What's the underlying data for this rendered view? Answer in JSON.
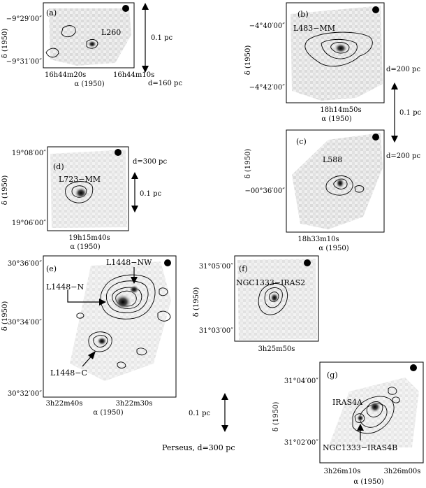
{
  "panels": [
    {
      "id": "a",
      "letter": "(a)",
      "source": "L260",
      "yticks": [
        "−9°29′00″",
        "−9°31′00″"
      ],
      "xticks": [
        "16h44m20s",
        "16h44m10s"
      ],
      "ylabel": "δ (1950)",
      "xlabel": "α (1950)"
    },
    {
      "id": "b",
      "letter": "(b)",
      "source": "L483−MM",
      "yticks": [
        "−4°40′00″",
        "−4°42′00″"
      ],
      "xticks": [
        "18h14m50s"
      ],
      "ylabel": "δ (1950)",
      "xlabel": "α (1950)"
    },
    {
      "id": "c",
      "letter": "(c)",
      "source": "L588",
      "yticks": [
        "−00°36′00″"
      ],
      "xticks": [
        "18h33m10s"
      ],
      "ylabel": "δ (1950)",
      "xlabel": "α (1950)"
    },
    {
      "id": "d",
      "letter": "(d)",
      "source": "L723−MM",
      "yticks": [
        "19°08′00″",
        "19°06′00″"
      ],
      "xticks": [
        "19h15m40s"
      ],
      "ylabel": "δ (1950)",
      "xlabel": "α (1950)"
    },
    {
      "id": "e",
      "letter": "(e)",
      "sources": [
        "L1448−NW",
        "L1448−N",
        "L1448−C"
      ],
      "yticks": [
        "30°36′00″",
        "30°34′00″",
        "30°32′00″"
      ],
      "xticks": [
        "3h22m40s",
        "3h22m30s"
      ],
      "ylabel": "δ (1950)",
      "xlabel": "α (1950)"
    },
    {
      "id": "f",
      "letter": "(f)",
      "source": "NGC1333−IRAS2",
      "yticks": [
        "31°05′00″",
        "31°03′00″"
      ],
      "xticks": [
        "3h25m50s"
      ],
      "ylabel": "δ (1950)"
    },
    {
      "id": "g",
      "letter": "(g)",
      "sources": [
        "IRAS4A",
        "NGC1333−IRAS4B"
      ],
      "yticks": [
        "31°04′00″",
        "31°02′00″"
      ],
      "xticks": [
        "3h26m10s",
        "3h26m00s"
      ],
      "ylabel": "δ (1950)",
      "xlabel": "α (1950)"
    }
  ],
  "scalebars": {
    "a": {
      "size": "0.1 pc",
      "dist": "d=160 pc"
    },
    "bc": {
      "size": "0.1 pc",
      "dist_b": "d=200 pc",
      "dist_c": "d=200 pc"
    },
    "d": {
      "size": "0.1 pc",
      "dist": "d=300 pc"
    },
    "perseus": {
      "size": "0.1 pc",
      "caption": "Perseus, d=300 pc"
    }
  }
}
